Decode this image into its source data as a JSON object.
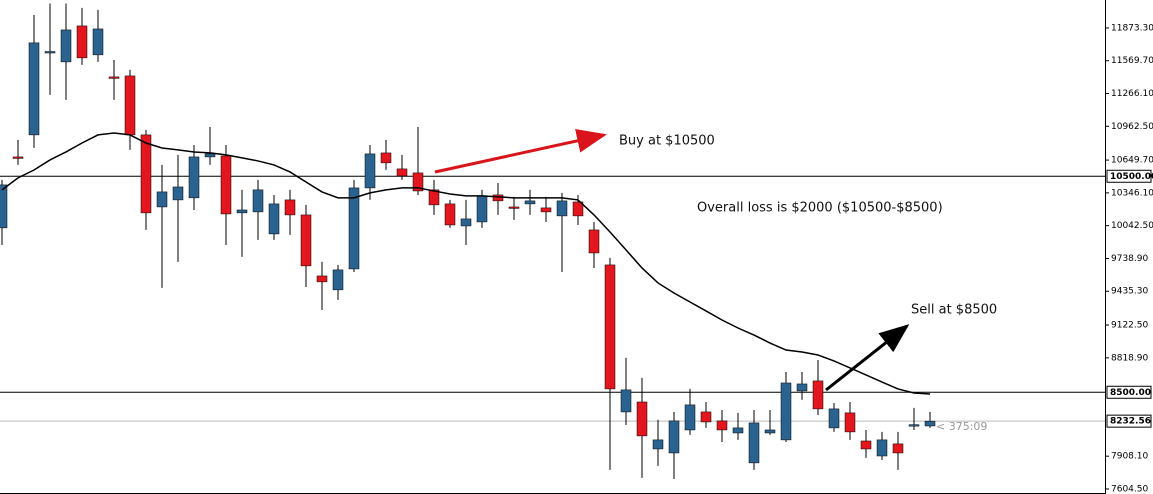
{
  "chart_data": {
    "type": "candlestick",
    "ylim": [
      7558,
      12132
    ],
    "yticks": [
      {
        "value": 11873.3,
        "label": "11873.30"
      },
      {
        "value": 11569.7,
        "label": "11569.70"
      },
      {
        "value": 11266.1,
        "label": "11266.10"
      },
      {
        "value": 10962.5,
        "label": "10962.50"
      },
      {
        "value": 10649.7,
        "label": "10649.70"
      },
      {
        "value": 10346.1,
        "label": "10346.10"
      },
      {
        "value": 10042.5,
        "label": "10042.50"
      },
      {
        "value": 9738.9,
        "label": "9738.90"
      },
      {
        "value": 9435.3,
        "label": "9435.30"
      },
      {
        "value": 9122.5,
        "label": "9122.50"
      },
      {
        "value": 8818.9,
        "label": "8818.90"
      },
      {
        "value": 7908.1,
        "label": "7908.10"
      },
      {
        "value": 7604.5,
        "label": "7604.50"
      }
    ],
    "up_color": "#2b6390",
    "down_color": "#e3161d",
    "open": [
      10022,
      10679,
      10883,
      11651,
      11559,
      11892,
      11624,
      11420,
      11429,
      10883,
      10216,
      10281,
      10300,
      10679,
      10688,
      10161,
      10170,
      9966,
      10281,
      10142,
      9577,
      9448,
      9642,
      10392,
      10716,
      10568,
      10531,
      10374,
      10244,
      10040,
      10077,
      10327,
      10216,
      10244,
      10207,
      10133,
      10262,
      10003,
      9679,
      8318,
      8410,
      7975,
      7938,
      8151,
      8318,
      8235,
      8123,
      7846,
      8123,
      8059,
      8512,
      8605,
      8170,
      8309,
      8049,
      7910,
      8022,
      8197,
      8188
    ],
    "high": [
      10466,
      10837,
      11994,
      12100,
      12100,
      12059,
      12040,
      11577,
      11485,
      10929,
      10605,
      10698,
      10790,
      10957,
      10790,
      10374,
      10466,
      10327,
      10374,
      10235,
      9707,
      9679,
      10466,
      10790,
      10837,
      10698,
      10957,
      10466,
      10281,
      10281,
      10374,
      10438,
      10309,
      10374,
      10309,
      10346,
      10327,
      10077,
      9744,
      8818,
      8633,
      8244,
      8318,
      8531,
      8410,
      8336,
      8309,
      8336,
      8336,
      8688,
      8688,
      8799,
      8401,
      8410,
      8151,
      8133,
      8133,
      8355,
      8318
    ],
    "low": [
      9864,
      10605,
      10763,
      11253,
      11207,
      11531,
      11559,
      11207,
      10744,
      10003,
      9466,
      9707,
      10188,
      10605,
      9864,
      9753,
      9911,
      9911,
      9957,
      9475,
      9262,
      9355,
      9614,
      10281,
      10559,
      10466,
      10327,
      10142,
      10022,
      9864,
      10022,
      10142,
      10096,
      10142,
      10077,
      9614,
      10049,
      9651,
      7781,
      8197,
      7707,
      7818,
      7697,
      8105,
      8170,
      8040,
      8059,
      7781,
      8105,
      8040,
      8429,
      8290,
      8133,
      8059,
      7892,
      7873,
      7781,
      8151,
      8170
    ],
    "close": [
      10420,
      10675,
      11735,
      11655,
      11855,
      11596,
      11864,
      11416,
      10883,
      10161,
      10355,
      10401,
      10679,
      10707,
      10151,
      10188,
      10374,
      10244,
      10142,
      9670,
      9522,
      9633,
      10392,
      10707,
      10624,
      10503,
      10364,
      10235,
      10049,
      10105,
      10318,
      10272,
      10212,
      10272,
      10170,
      10272,
      10133,
      9790,
      8531,
      8522,
      8096,
      8059,
      8235,
      8383,
      8225,
      8151,
      8170,
      8216,
      8151,
      8586,
      8577,
      8346,
      8346,
      8133,
      7975,
      8059,
      7938,
      8200,
      8232.56
    ],
    "ma": {
      "color": "#000000",
      "values": [
        10374,
        10485,
        10558,
        10651,
        10725,
        10808,
        10883,
        10901,
        10883,
        10808,
        10762,
        10744,
        10725,
        10716,
        10698,
        10670,
        10642,
        10605,
        10540,
        10447,
        10355,
        10300,
        10300,
        10346,
        10374,
        10392,
        10392,
        10364,
        10336,
        10318,
        10318,
        10309,
        10300,
        10300,
        10300,
        10300,
        10281,
        10142,
        9984,
        9818,
        9651,
        9512,
        9419,
        9336,
        9253,
        9169,
        9095,
        9030,
        8956,
        8891,
        8873,
        8845,
        8790,
        8725,
        8660,
        8595,
        8531,
        8493,
        8484
      ]
    },
    "hlines": [
      {
        "value": 10500,
        "label": "10500.00"
      },
      {
        "value": 8500,
        "label": "8500.00"
      }
    ],
    "current_price": 8232.56,
    "countdown": "< 375:09",
    "annotations": [
      "Buy at $10500",
      "Overall loss is $2000 ($10500-$8500)",
      "Sell at $8500"
    ]
  }
}
